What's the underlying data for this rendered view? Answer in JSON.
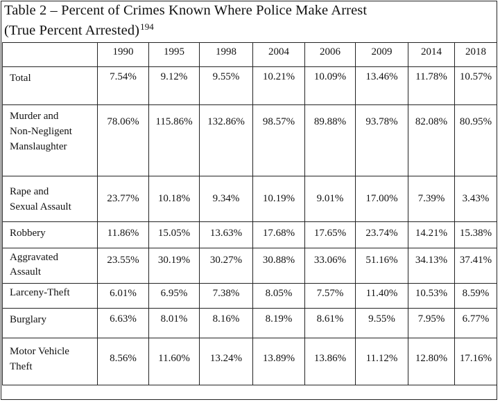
{
  "document": {
    "title_line1": "Table 2 – Percent of Crimes Known Where Police Make Arrest",
    "title_line2": "(True Percent Arrested)",
    "footnote_ref": "194"
  },
  "table": {
    "years": [
      "1990",
      "1995",
      "1998",
      "2004",
      "2006",
      "2009",
      "2014",
      "2018"
    ],
    "rows": [
      {
        "label_lines": [
          "Total"
        ],
        "values": [
          "7.54%",
          "9.12%",
          "9.55%",
          "10.21%",
          "10.09%",
          "13.46%",
          "11.78%",
          "10.57%"
        ]
      },
      {
        "label_lines": [
          "Murder and",
          "Non-Negligent",
          "Manslaughter"
        ],
        "values": [
          "78.06%",
          "115.86%",
          "132.86%",
          "98.57%",
          "89.88%",
          "93.78%",
          "82.08%",
          "80.95%"
        ]
      },
      {
        "label_lines": [
          "Rape and",
          "Sexual Assault"
        ],
        "values": [
          "23.77%",
          "10.18%",
          "9.34%",
          "10.19%",
          "9.01%",
          "17.00%",
          "7.39%",
          "3.43%"
        ]
      },
      {
        "label_lines": [
          "Robbery"
        ],
        "values": [
          "11.86%",
          "15.05%",
          "13.63%",
          "17.68%",
          "17.65%",
          "23.74%",
          "14.21%",
          "15.38%"
        ]
      },
      {
        "label_lines": [
          "Aggravated",
          "Assault"
        ],
        "values": [
          "23.55%",
          "30.19%",
          "30.27%",
          "30.88%",
          "33.06%",
          "51.16%",
          "34.13%",
          "37.41%"
        ]
      },
      {
        "label_lines": [
          "Larceny-Theft"
        ],
        "values": [
          "6.01%",
          "6.95%",
          "7.38%",
          "8.05%",
          "7.57%",
          "11.40%",
          "10.53%",
          "8.59%"
        ]
      },
      {
        "label_lines": [
          "Burglary"
        ],
        "values": [
          "6.63%",
          "8.01%",
          "8.16%",
          "8.19%",
          "8.61%",
          "9.55%",
          "7.95%",
          "6.77%"
        ]
      },
      {
        "label_lines": [
          "Motor Vehicle",
          "Theft"
        ],
        "values": [
          "8.56%",
          "11.60%",
          "13.24%",
          "13.89%",
          "13.86%",
          "11.12%",
          "12.80%",
          "17.16%"
        ]
      }
    ]
  }
}
